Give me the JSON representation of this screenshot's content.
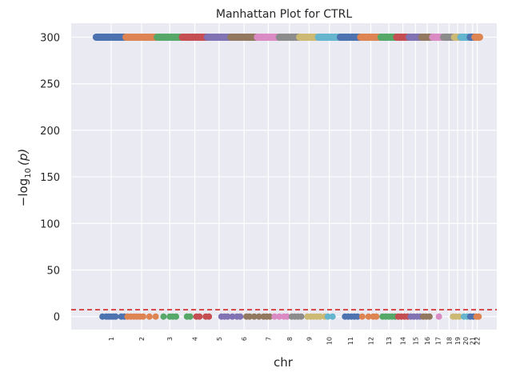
{
  "chart_data": {
    "type": "scatter",
    "title": "Manhattan Plot for CTRL",
    "xlabel": "chr",
    "ylabel_text": "−log",
    "ylabel_sub": "10",
    "ylabel_p": "(p)",
    "ylim": [
      -14,
      315
    ],
    "yticks": [
      0,
      50,
      100,
      150,
      200,
      250,
      300
    ],
    "threshold": 7.3,
    "threshold_color": "#d62728",
    "background": "#eaeaf2",
    "grid": true,
    "palette": [
      "#4c72b0",
      "#dd8452",
      "#55a868",
      "#c44e52",
      "#8172b3",
      "#937860",
      "#da8bc3",
      "#8c8c8c",
      "#ccb974",
      "#64b5cd"
    ],
    "chromosomes": [
      {
        "label": "1",
        "start": 0.0,
        "end": 9.5
      },
      {
        "label": "2",
        "start": 9.5,
        "end": 19.5
      },
      {
        "label": "3",
        "start": 19.5,
        "end": 27.5
      },
      {
        "label": "4",
        "start": 27.5,
        "end": 35.5
      },
      {
        "label": "5",
        "start": 35.5,
        "end": 43.0
      },
      {
        "label": "6",
        "start": 43.0,
        "end": 51.5
      },
      {
        "label": "7",
        "start": 51.5,
        "end": 58.5
      },
      {
        "label": "8",
        "start": 58.5,
        "end": 65.0
      },
      {
        "label": "9",
        "start": 65.0,
        "end": 71.0
      },
      {
        "label": "10",
        "start": 71.0,
        "end": 78.0
      },
      {
        "label": "11",
        "start": 78.0,
        "end": 84.5
      },
      {
        "label": "12",
        "start": 84.5,
        "end": 91.0
      },
      {
        "label": "13",
        "start": 91.0,
        "end": 96.0
      },
      {
        "label": "14",
        "start": 96.0,
        "end": 100.0
      },
      {
        "label": "15",
        "start": 100.0,
        "end": 104.0
      },
      {
        "label": "16",
        "start": 104.0,
        "end": 107.5
      },
      {
        "label": "17",
        "start": 107.5,
        "end": 111.0
      },
      {
        "label": "18",
        "start": 111.0,
        "end": 114.5
      },
      {
        "label": "19",
        "start": 114.5,
        "end": 116.5
      },
      {
        "label": "20",
        "start": 116.5,
        "end": 119.5
      },
      {
        "label": "21",
        "start": 119.5,
        "end": 121.0
      },
      {
        "label": "22",
        "start": 121.0,
        "end": 122.5
      }
    ],
    "top_value": 300,
    "low_points": [
      {
        "chr": "1",
        "x": [
          2.0,
          3.2,
          4.0,
          4.8,
          5.5,
          6.2
        ]
      },
      {
        "chr": "1",
        "x": [
          8.0,
          9.0
        ]
      },
      {
        "chr": "2",
        "x": [
          10.0,
          11.0,
          12.0,
          13.0,
          14.0,
          15.0,
          17.0,
          19.0
        ]
      },
      {
        "chr": "3",
        "x": [
          21.5,
          23.5,
          24.5,
          25.5
        ]
      },
      {
        "chr": "3",
        "x": [
          29.0,
          30.0
        ]
      },
      {
        "chr": "4",
        "x": [
          32.0,
          33.0,
          35.0,
          36.0
        ]
      },
      {
        "chr": "5",
        "x": [
          40.0,
          41.0,
          42.0,
          43.5,
          45.0,
          46.0
        ]
      },
      {
        "chr": "6",
        "x": [
          48.0,
          49.0,
          50.5,
          52.0,
          53.5,
          54.5,
          55.5
        ]
      },
      {
        "chr": "7",
        "x": [
          57.0,
          58.5,
          60.0,
          61.0
        ]
      },
      {
        "chr": "8",
        "x": [
          62.5,
          63.5,
          64.5,
          65.5
        ]
      },
      {
        "chr": "9",
        "x": [
          67.5,
          68.5,
          69.5,
          70.5,
          71.5,
          73.0
        ]
      },
      {
        "chr": "10",
        "x": [
          74.0,
          75.5
        ]
      },
      {
        "chr": "11",
        "x": [
          79.5,
          80.5,
          81.5,
          82.5,
          83.5
        ]
      },
      {
        "chr": "12",
        "x": [
          85.0,
          87.0,
          88.5,
          89.5
        ]
      },
      {
        "chr": "13",
        "x": [
          91.5,
          92.5,
          93.5,
          94.5,
          95.5
        ]
      },
      {
        "chr": "14",
        "x": [
          96.5,
          97.5,
          98.5,
          99.5
        ]
      },
      {
        "chr": "15",
        "x": [
          100.5,
          101.5,
          102.5,
          103.5
        ]
      },
      {
        "chr": "16",
        "x": [
          104.5,
          105.5,
          106.5
        ]
      },
      {
        "chr": "17",
        "x": [
          109.5
        ]
      },
      {
        "chr": "19",
        "x": [
          114.0,
          115.0,
          116.0
        ]
      },
      {
        "chr": "20",
        "x": [
          117.5,
          118.5
        ]
      },
      {
        "chr": "21",
        "x": [
          119.5,
          120.5
        ]
      },
      {
        "chr": "22",
        "x": [
          121.5,
          122.2
        ]
      }
    ],
    "xlim": [
      -8,
      128
    ]
  }
}
